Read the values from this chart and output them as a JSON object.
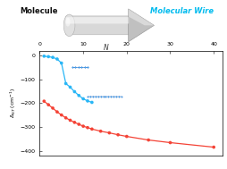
{
  "title_left": "Molecule",
  "title_right": "Molecular Wire",
  "title_left_color": "#111111",
  "title_right_color_r": "#cc0000",
  "title_right_color_g": "#00aa00",
  "title_right_color_b": "#0055dd",
  "arrow_label": "N",
  "xlim": [
    0,
    42
  ],
  "ylim": [
    -420,
    20
  ],
  "xticks": [
    0,
    10,
    20,
    30,
    40
  ],
  "yticks": [
    0,
    -100,
    -200,
    -300,
    -400
  ],
  "ytick_labels": [
    "0",
    "−100",
    "−200",
    "−300",
    "−400"
  ],
  "blue_x": [
    1,
    2,
    3,
    4,
    5,
    6,
    7,
    8,
    9,
    10,
    11,
    12
  ],
  "blue_y": [
    -3,
    -5,
    -8,
    -15,
    -32,
    -118,
    -133,
    -152,
    -168,
    -182,
    -191,
    -197
  ],
  "red_x": [
    1,
    2,
    3,
    4,
    5,
    6,
    7,
    8,
    9,
    10,
    11,
    12,
    14,
    16,
    18,
    20,
    25,
    30,
    40
  ],
  "red_y": [
    -192,
    -207,
    -221,
    -237,
    -250,
    -262,
    -272,
    -281,
    -289,
    -297,
    -303,
    -309,
    -318,
    -325,
    -333,
    -340,
    -355,
    -366,
    -385
  ],
  "blue_color": "#29b6f6",
  "red_color": "#f44336",
  "background_color": "#ffffff",
  "fig_width": 2.54,
  "fig_height": 1.89,
  "dpi": 100
}
